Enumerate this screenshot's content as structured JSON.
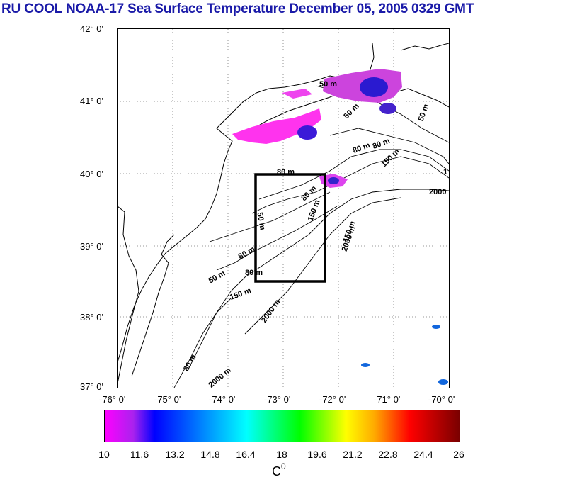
{
  "title": "RU COOL  NOAA-17 Sea Surface Temperature December 05, 2005 0329 GMT",
  "map": {
    "lat_labels": [
      "42° 0'",
      "41° 0'",
      "40° 0'",
      "39° 0'",
      "38° 0'",
      "37° 0'"
    ],
    "lon_labels": [
      "-76° 0'",
      "-75° 0'",
      "-74° 0'",
      "-73° 0'",
      "-72° 0'",
      "-71° 0'",
      "-70° 0'"
    ],
    "contour_labels": [
      "50 m",
      "50 m",
      "50 m",
      "80 m",
      "80 m",
      "150 m",
      "150 m",
      "80 m",
      "80 m",
      "150 m",
      "2000",
      "2000 m",
      "50 m",
      "80 m",
      "80 m",
      "150 m",
      "2000 m",
      "50 m",
      "80 m",
      "2000 m",
      "1"
    ]
  },
  "colorbar": {
    "ticks": [
      "10",
      "11.6",
      "13.2",
      "14.8",
      "16.4",
      "18",
      "19.6",
      "21.2",
      "22.8",
      "24.4",
      "26"
    ],
    "unit_base": "C",
    "unit_sup": "0",
    "colors": [
      "#ff00ff",
      "#0000ff",
      "#00ffff",
      "#00ff00",
      "#ffff00",
      "#ff0000",
      "#7a0000"
    ]
  }
}
